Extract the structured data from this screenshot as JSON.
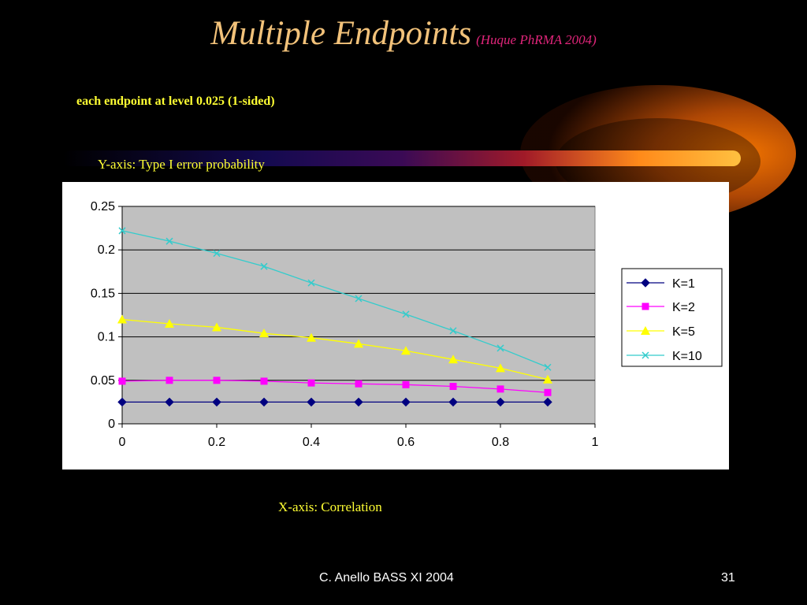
{
  "slide": {
    "title": "Multiple Endpoints",
    "title_note": "(Huque PhRMA 2004)",
    "subtitle": "each endpoint at level 0.025 (1-sided)",
    "y_axis_note": "Y-axis: Type I error probability",
    "x_axis_note": "X-axis: Correlation",
    "footer": "C. Anello BASS XI 2004",
    "page_number": "31"
  },
  "colors": {
    "background": "#000000",
    "title": "#f2c27a",
    "title_note": "#e0257a",
    "note_text": "#ffff33",
    "plot_area": "#c0c0c0",
    "chart_bg": "#ffffff"
  },
  "chart_data": {
    "type": "line",
    "title": "",
    "xlabel": "",
    "ylabel": "",
    "xlim": [
      0,
      1
    ],
    "ylim": [
      0,
      0.25
    ],
    "x_ticks": [
      "0",
      "0.2",
      "0.4",
      "0.6",
      "0.8",
      "1"
    ],
    "y_ticks": [
      "0",
      "0.05",
      "0.1",
      "0.15",
      "0.2",
      "0.25"
    ],
    "grid": true,
    "legend_position": "right",
    "x": [
      0,
      0.1,
      0.2,
      0.3,
      0.4,
      0.5,
      0.6,
      0.7,
      0.8,
      0.9
    ],
    "series": [
      {
        "name": "K=1",
        "color": "#000080",
        "marker": "diamond",
        "values": [
          0.025,
          0.025,
          0.025,
          0.025,
          0.025,
          0.025,
          0.025,
          0.025,
          0.025,
          0.025
        ]
      },
      {
        "name": "K=2",
        "color": "#ff00ff",
        "marker": "square",
        "values": [
          0.049,
          0.05,
          0.05,
          0.049,
          0.047,
          0.046,
          0.045,
          0.043,
          0.04,
          0.036
        ]
      },
      {
        "name": "K=5",
        "color": "#ffff00",
        "marker": "triangle",
        "values": [
          0.12,
          0.115,
          0.111,
          0.104,
          0.099,
          0.092,
          0.084,
          0.074,
          0.064,
          0.051
        ]
      },
      {
        "name": "K=10",
        "color": "#33cccc",
        "marker": "x",
        "values": [
          0.222,
          0.21,
          0.196,
          0.181,
          0.162,
          0.144,
          0.126,
          0.107,
          0.087,
          0.065
        ]
      }
    ]
  }
}
